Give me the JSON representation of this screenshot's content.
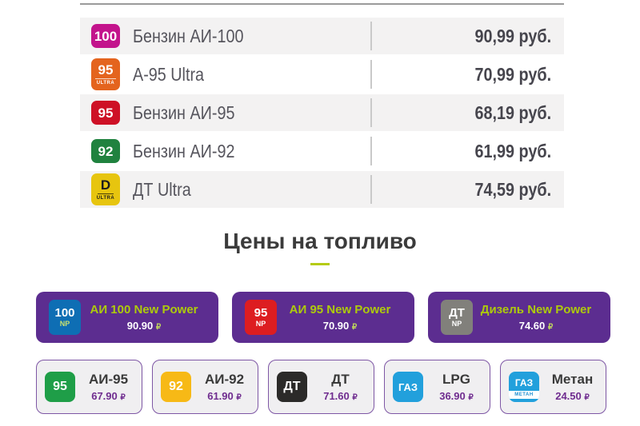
{
  "price_table": {
    "rows": [
      {
        "badge": "100",
        "badge_sub": "",
        "badge_color": "#c3148c",
        "name": "Бензин АИ-100",
        "price": "90,99 руб."
      },
      {
        "badge": "95",
        "badge_sub": "ULTRA",
        "badge_color": "#e4641e",
        "name": "А-95 Ultra",
        "price": "70,99 руб."
      },
      {
        "badge": "95",
        "badge_sub": "",
        "badge_color": "#ce1126",
        "name": "Бензин АИ-95",
        "price": "68,19 руб."
      },
      {
        "badge": "92",
        "badge_sub": "",
        "badge_color": "#20823f",
        "name": "Бензин АИ-92",
        "price": "61,99 руб."
      },
      {
        "badge": "D",
        "badge_sub": "ULTRA",
        "badge_color": "#e7c50f",
        "name": "ДТ Ultra",
        "price": "74,59 руб."
      }
    ]
  },
  "section": {
    "title": "Цены на топливо"
  },
  "premium_cards": [
    {
      "badge": "100",
      "badge_sub": "NP",
      "badge_color": "#0e6eb4",
      "name": "АИ 100 New Power",
      "price": "90.90",
      "currency": "₽"
    },
    {
      "badge": "95",
      "badge_sub": "NP",
      "badge_color": "#dd1d21",
      "name": "АИ 95 New Power",
      "price": "70.90",
      "currency": "₽"
    },
    {
      "badge": "ДТ",
      "badge_sub": "NP",
      "badge_color": "#81807b",
      "name": "Дизель New Power",
      "price": "74.60",
      "currency": "₽"
    }
  ],
  "regular_cards": [
    {
      "badge": "95",
      "badge_sub": "",
      "badge_color": "#1f9e48",
      "name": "АИ-95",
      "price": "67.90",
      "currency": "₽"
    },
    {
      "badge": "92",
      "badge_sub": "",
      "badge_color": "#f7b916",
      "name": "АИ-92",
      "price": "61.90",
      "currency": "₽"
    },
    {
      "badge": "ДТ",
      "badge_sub": "",
      "badge_color": "#2b2a29",
      "name": "ДТ",
      "price": "71.60",
      "currency": "₽"
    },
    {
      "badge": "ГАЗ",
      "badge_sub": "",
      "badge_color": "#22a0dc",
      "name": "LPG",
      "price": "36.90",
      "currency": "₽"
    },
    {
      "badge": "ГАЗ",
      "badge_sub": "МЕТАН",
      "badge_color": "#22a0dc",
      "name": "Метан",
      "price": "24.50",
      "currency": "₽"
    }
  ],
  "colors": {
    "accent_lime": "#b5cb13",
    "card_purple": "#5c2d90",
    "price_purple": "#6f2c8f",
    "table_row_gray": "#f3f2f2",
    "table_text": "#56555d",
    "table_price_text": "#46454d"
  }
}
